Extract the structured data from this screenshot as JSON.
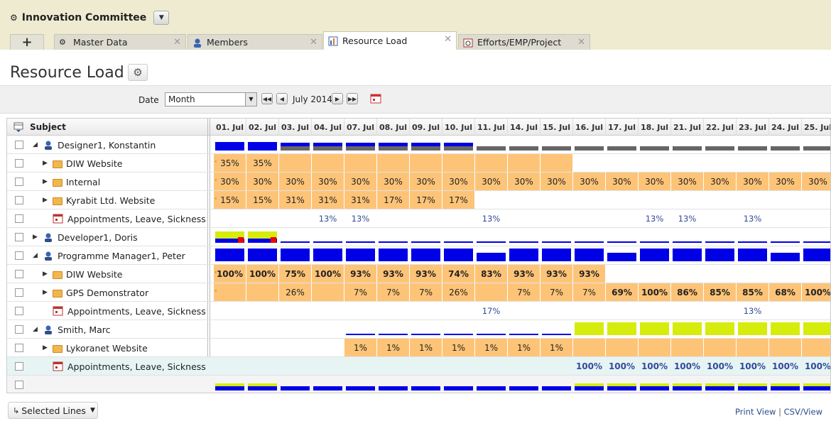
{
  "app": {
    "title": "Innovation Committee"
  },
  "tabs": [
    {
      "label": "Master Data",
      "active": false
    },
    {
      "label": "Members",
      "active": false
    },
    {
      "label": "Resource Load",
      "active": true
    },
    {
      "label": "Efforts/EMP/Project",
      "active": false
    }
  ],
  "page": {
    "title": "Resource Load"
  },
  "filter": {
    "date_label": "Date",
    "date_value": "Month",
    "period": "July 2014"
  },
  "grid": {
    "subject_header": "Subject",
    "columns": [
      "01. Jul",
      "02. Jul",
      "03. Jul",
      "04. Jul",
      "07. Jul",
      "08. Jul",
      "09. Jul",
      "10. Jul",
      "11. Jul",
      "14. Jul",
      "15. Jul",
      "16. Jul",
      "17. Jul",
      "18. Jul",
      "21. Jul",
      "22. Jul",
      "23. Jul",
      "24. Jul",
      "25. Jul"
    ],
    "rows": [
      {
        "label": "Designer1, Konstantin",
        "type": "person",
        "level": 0,
        "expand": "open",
        "cells": []
      },
      {
        "label": "DIW Website",
        "type": "folder",
        "level": 1,
        "expand": "closed",
        "cells": [
          "35%",
          "35%",
          "",
          "",
          "",
          "",
          "",
          "",
          "",
          "",
          "",
          "",
          "",
          "",
          "",
          "",
          "",
          "",
          ""
        ]
      },
      {
        "label": "Internal",
        "type": "folder",
        "level": 1,
        "expand": "closed",
        "cells": [
          "30%",
          "30%",
          "30%",
          "30%",
          "30%",
          "30%",
          "30%",
          "30%",
          "30%",
          "30%",
          "30%",
          "30%",
          "30%",
          "30%",
          "30%",
          "30%",
          "30%",
          "30%",
          "30%"
        ]
      },
      {
        "label": "Kyrabit Ltd. Website",
        "type": "folder",
        "level": 1,
        "expand": "closed",
        "cells": [
          "15%",
          "15%",
          "31%",
          "31%",
          "31%",
          "17%",
          "17%",
          "17%",
          "",
          "",
          "",
          "",
          "",
          "",
          "",
          "",
          "",
          "",
          ""
        ]
      },
      {
        "label": "Appointments, Leave, Sickness",
        "type": "appt",
        "level": 1,
        "expand": "",
        "cells": [
          "",
          "",
          "",
          "13%",
          "13%",
          "",
          "",
          "",
          "13%",
          "",
          "",
          "",
          "",
          "13%",
          "13%",
          "",
          "13%",
          "",
          ""
        ]
      },
      {
        "label": "Developer1, Doris",
        "type": "person",
        "level": 0,
        "expand": "closed",
        "cells": []
      },
      {
        "label": "Programme Manager1, Peter",
        "type": "person",
        "level": 0,
        "expand": "open",
        "cells": []
      },
      {
        "label": "DIW Website",
        "type": "folder",
        "level": 1,
        "expand": "closed",
        "cells": [
          "100%",
          "100%",
          "75%",
          "100%",
          "93%",
          "93%",
          "93%",
          "74%",
          "83%",
          "93%",
          "93%",
          "93%",
          "",
          "",
          "",
          "",
          "",
          "",
          ""
        ]
      },
      {
        "label": "GPS Demonstrator",
        "type": "folder",
        "level": 1,
        "expand": "closed",
        "cells": [
          "",
          "",
          "26%",
          "",
          "7%",
          "7%",
          "7%",
          "26%",
          "",
          "7%",
          "7%",
          "7%",
          "69%",
          "100%",
          "86%",
          "85%",
          "85%",
          "68%",
          "100%"
        ]
      },
      {
        "label": "Appointments, Leave, Sickness",
        "type": "appt",
        "level": 1,
        "expand": "",
        "cells": [
          "",
          "",
          "",
          "",
          "",
          "",
          "",
          "",
          "17%",
          "",
          "",
          "",
          "",
          "",
          "",
          "",
          "13%",
          "",
          ""
        ]
      },
      {
        "label": "Smith, Marc",
        "type": "person",
        "level": 0,
        "expand": "open",
        "cells": []
      },
      {
        "label": "Lykoranet Website",
        "type": "folder",
        "level": 1,
        "expand": "closed",
        "cells": [
          "",
          "",
          "",
          "",
          "1%",
          "1%",
          "1%",
          "1%",
          "1%",
          "1%",
          "1%",
          "",
          "",
          "",
          "",
          "",
          "",
          "",
          ""
        ]
      },
      {
        "label": "Appointments, Leave, Sickness",
        "type": "appt",
        "level": 1,
        "expand": "",
        "cells": [
          "",
          "",
          "",
          "",
          "",
          "",
          "",
          "",
          "",
          "",
          "",
          "100%",
          "100%",
          "100%",
          "100%",
          "100%",
          "100%",
          "100%",
          "100%"
        ]
      }
    ]
  },
  "footer": {
    "selected_lines": "Selected Lines",
    "print_view": "Print View",
    "csv_view": "CSV/View",
    "separator": "|"
  },
  "colors": {
    "orange": "#fdc478",
    "blue": "#0000e6",
    "lime": "#d6ec0c",
    "grey_bar": "#666666"
  }
}
